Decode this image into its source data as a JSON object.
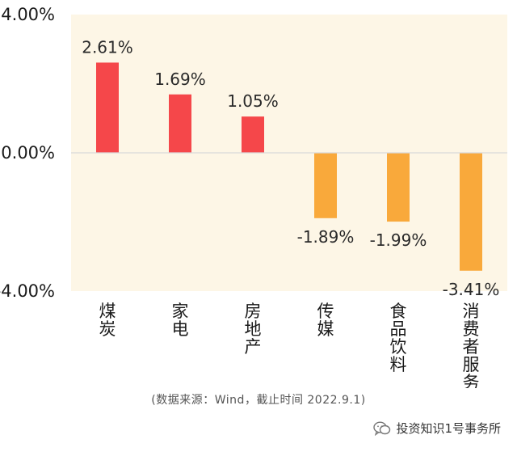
{
  "chart_data": {
    "type": "bar",
    "categories": [
      "煤炭",
      "家电",
      "房地产",
      "传媒",
      "食品饮料",
      "消费者服务"
    ],
    "values": [
      2.61,
      1.69,
      1.05,
      -1.89,
      -1.99,
      -3.41
    ],
    "data_labels": [
      "2.61%",
      "1.69%",
      "1.05%",
      "-1.89%",
      "-1.99%",
      "-3.41%"
    ],
    "ylim": [
      -4,
      4
    ],
    "yticks": [
      4,
      0,
      -4
    ],
    "ytick_labels": [
      "4.00%",
      "0.00%",
      "-4.00%"
    ],
    "grid": false,
    "colors": {
      "positive": "#f5474a",
      "negative": "#f9a93b",
      "plot_background": "#fdf6e6",
      "zero_line": "#d9d9d9"
    }
  },
  "source_note": "(数据来源：Wind，截止时间 2022.9.1)",
  "watermark": {
    "icon": "wechat-icon",
    "text": "投资知识1号事务所"
  }
}
